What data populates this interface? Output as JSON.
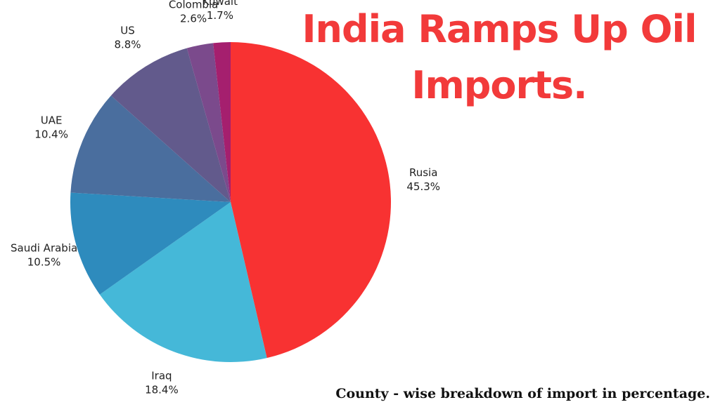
{
  "chart_data": {
    "type": "pie",
    "title": "India Ramps Up Oil Imports.",
    "subtitle": "County - wise breakdown of import in percentage.",
    "categories": [
      "Rusia",
      "Iraq",
      "Saudi Arabia",
      "UAE",
      "US",
      "Colombia",
      "Kuwait"
    ],
    "values": [
      45.3,
      18.4,
      10.5,
      10.4,
      8.8,
      2.6,
      1.7
    ],
    "value_labels": [
      "45.3%",
      "18.4%",
      "10.5%",
      "10.4%",
      "8.8%",
      "2.6%",
      "1.7%"
    ],
    "colors": [
      "#f83232",
      "#45b8d8",
      "#2e8bbd",
      "#4a6e9e",
      "#625a8c",
      "#7b4a8c",
      "#a51f6e"
    ]
  }
}
